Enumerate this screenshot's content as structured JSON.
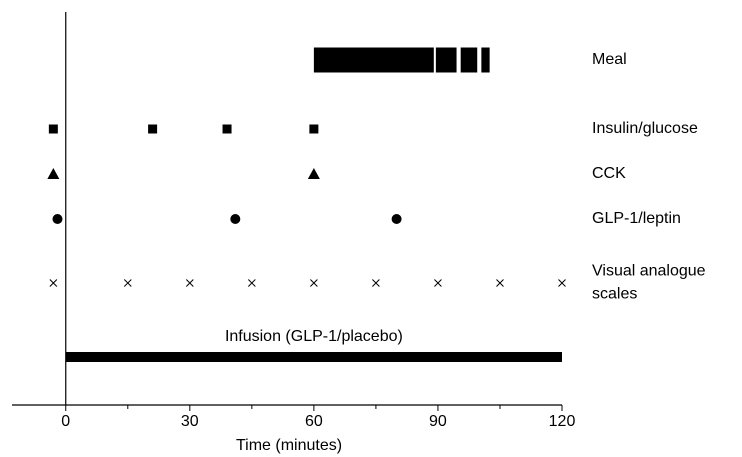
{
  "chart_data": {
    "type": "timeline",
    "xlabel": "Time (minutes)",
    "xlim": [
      -13,
      120
    ],
    "xticks": [
      0,
      30,
      60,
      90,
      120
    ],
    "xminorticks": [
      15,
      45,
      75,
      105
    ],
    "color": "#000000",
    "rows": [
      {
        "label": "Meal",
        "marker": "bar",
        "segments": [
          [
            60,
            89
          ],
          [
            89.5,
            94.5
          ],
          [
            95.5,
            99.5
          ],
          [
            100.5,
            102.5
          ]
        ]
      },
      {
        "label": "Insulin/glucose",
        "marker": "square",
        "values": [
          -3,
          21,
          39,
          60
        ]
      },
      {
        "label": "CCK",
        "marker": "triangle",
        "values": [
          -3,
          60
        ]
      },
      {
        "label": "GLP-1/leptin",
        "marker": "circle",
        "values": [
          -2,
          41,
          80
        ]
      },
      {
        "label": [
          "Visual analogue",
          "scales"
        ],
        "marker": "cross",
        "values": [
          -3,
          15,
          30,
          45,
          60,
          75,
          90,
          105,
          120
        ]
      }
    ],
    "infusion": {
      "label": "Infusion (GLP-1/placebo)",
      "segments": [
        [
          0,
          120
        ]
      ]
    }
  }
}
